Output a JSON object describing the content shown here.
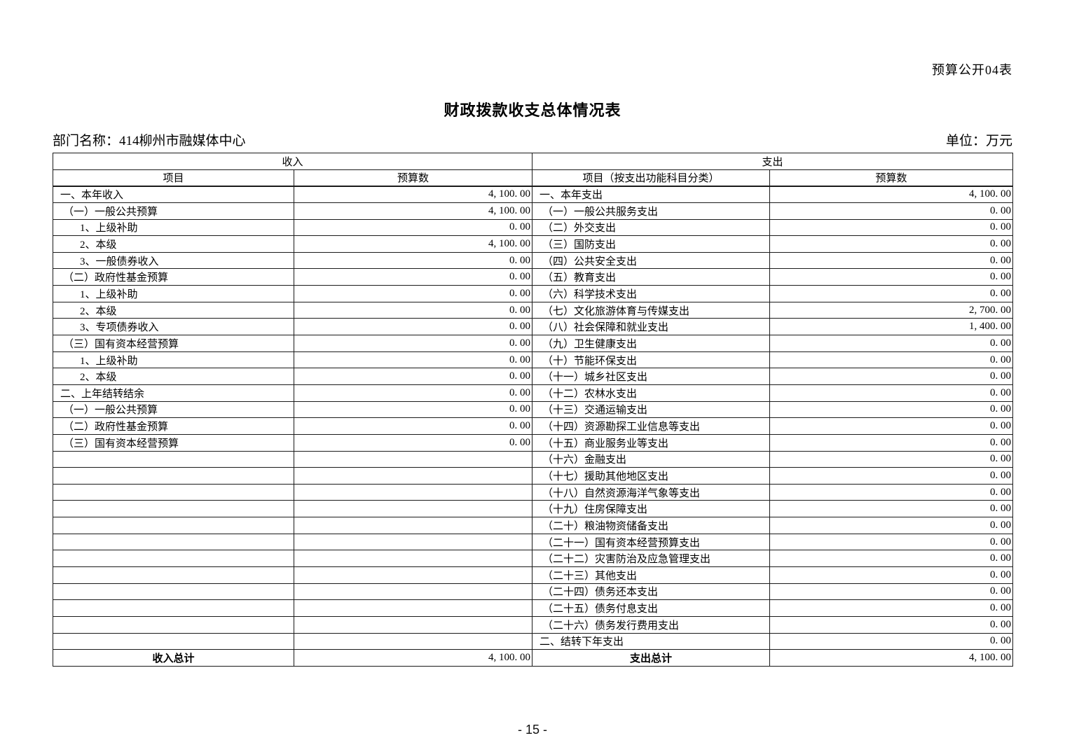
{
  "page": {
    "table_code": "预算公开04表",
    "title": "财政拨款收支总体情况表",
    "department_label": "部门名称：414柳州市融媒体中心",
    "unit_label": "单位：万元",
    "page_number": "- 15 -"
  },
  "table": {
    "income_section_header": "收入",
    "expense_section_header": "支出",
    "income_col_headers": [
      "项目",
      "预算数"
    ],
    "expense_col_headers": [
      "项目（按支出功能科目分类）",
      "预算数"
    ],
    "income_rows": [
      {
        "label": "一、本年收入",
        "value": "4, 100. 00",
        "level": 0
      },
      {
        "label": "（一）一般公共预算",
        "value": "4, 100. 00",
        "level": 1
      },
      {
        "label": "1、上级补助",
        "value": "0. 00",
        "level": 2
      },
      {
        "label": "2、本级",
        "value": "4, 100. 00",
        "level": 2
      },
      {
        "label": "3、一般债券收入",
        "value": "0. 00",
        "level": 2
      },
      {
        "label": "（二）政府性基金预算",
        "value": "0. 00",
        "level": 1
      },
      {
        "label": "1、上级补助",
        "value": "0. 00",
        "level": 2
      },
      {
        "label": "2、本级",
        "value": "0. 00",
        "level": 2
      },
      {
        "label": "3、专项债券收入",
        "value": "0. 00",
        "level": 2
      },
      {
        "label": "（三）国有资本经营预算",
        "value": "0. 00",
        "level": 1
      },
      {
        "label": "1、上级补助",
        "value": "0. 00",
        "level": 2
      },
      {
        "label": "2、本级",
        "value": "0. 00",
        "level": 2
      },
      {
        "label": "二、上年结转结余",
        "value": "0. 00",
        "level": 0
      },
      {
        "label": "（一）一般公共预算",
        "value": "0. 00",
        "level": 1
      },
      {
        "label": "（二）政府性基金预算",
        "value": "0. 00",
        "level": 1
      },
      {
        "label": "（三）国有资本经营预算",
        "value": "0. 00",
        "level": 1
      },
      {
        "label": "",
        "value": "",
        "level": 0
      },
      {
        "label": "",
        "value": "",
        "level": 0
      },
      {
        "label": "",
        "value": "",
        "level": 0
      },
      {
        "label": "",
        "value": "",
        "level": 0
      },
      {
        "label": "",
        "value": "",
        "level": 0
      },
      {
        "label": "",
        "value": "",
        "level": 0
      },
      {
        "label": "",
        "value": "",
        "level": 0
      },
      {
        "label": "",
        "value": "",
        "level": 0
      },
      {
        "label": "",
        "value": "",
        "level": 0
      },
      {
        "label": "",
        "value": "",
        "level": 0
      },
      {
        "label": "",
        "value": "",
        "level": 0
      },
      {
        "label": "",
        "value": "",
        "level": 0
      }
    ],
    "expense_rows": [
      {
        "label": "一、本年支出",
        "value": "4, 100. 00",
        "level": 0
      },
      {
        "label": "（一）一般公共服务支出",
        "value": "0. 00",
        "level": 1
      },
      {
        "label": "（二）外交支出",
        "value": "0. 00",
        "level": 1
      },
      {
        "label": "（三）国防支出",
        "value": "0. 00",
        "level": 1
      },
      {
        "label": "（四）公共安全支出",
        "value": "0. 00",
        "level": 1
      },
      {
        "label": "（五）教育支出",
        "value": "0. 00",
        "level": 1
      },
      {
        "label": "（六）科学技术支出",
        "value": "0. 00",
        "level": 1
      },
      {
        "label": "（七）文化旅游体育与传媒支出",
        "value": "2, 700. 00",
        "level": 1
      },
      {
        "label": "（八）社会保障和就业支出",
        "value": "1, 400. 00",
        "level": 1
      },
      {
        "label": "（九）卫生健康支出",
        "value": "0. 00",
        "level": 1
      },
      {
        "label": "（十）节能环保支出",
        "value": "0. 00",
        "level": 1
      },
      {
        "label": "（十一）城乡社区支出",
        "value": "0. 00",
        "level": 1
      },
      {
        "label": "（十二）农林水支出",
        "value": "0. 00",
        "level": 1
      },
      {
        "label": "（十三）交通运输支出",
        "value": "0. 00",
        "level": 1
      },
      {
        "label": "（十四）资源勘探工业信息等支出",
        "value": "0. 00",
        "level": 1
      },
      {
        "label": "（十五）商业服务业等支出",
        "value": "0. 00",
        "level": 1
      },
      {
        "label": "（十六）金融支出",
        "value": "0. 00",
        "level": 1
      },
      {
        "label": "（十七）援助其他地区支出",
        "value": "0. 00",
        "level": 1
      },
      {
        "label": "（十八）自然资源海洋气象等支出",
        "value": "0. 00",
        "level": 1
      },
      {
        "label": "（十九）住房保障支出",
        "value": "0. 00",
        "level": 1
      },
      {
        "label": "（二十）粮油物资储备支出",
        "value": "0. 00",
        "level": 1
      },
      {
        "label": "（二十一）国有资本经营预算支出",
        "value": "0. 00",
        "level": 1
      },
      {
        "label": "（二十二）灾害防治及应急管理支出",
        "value": "0. 00",
        "level": 1
      },
      {
        "label": "（二十三）其他支出",
        "value": "0. 00",
        "level": 1
      },
      {
        "label": "（二十四）债务还本支出",
        "value": "0. 00",
        "level": 1
      },
      {
        "label": "（二十五）债务付息支出",
        "value": "0. 00",
        "level": 1
      },
      {
        "label": "（二十六）债务发行费用支出",
        "value": "0. 00",
        "level": 1
      },
      {
        "label": "二、结转下年支出",
        "value": "0. 00",
        "level": 0
      }
    ],
    "income_total_label": "收入总计",
    "income_total_value": "4, 100. 00",
    "expense_total_label": "支出总计",
    "expense_total_value": "4, 100. 00"
  }
}
